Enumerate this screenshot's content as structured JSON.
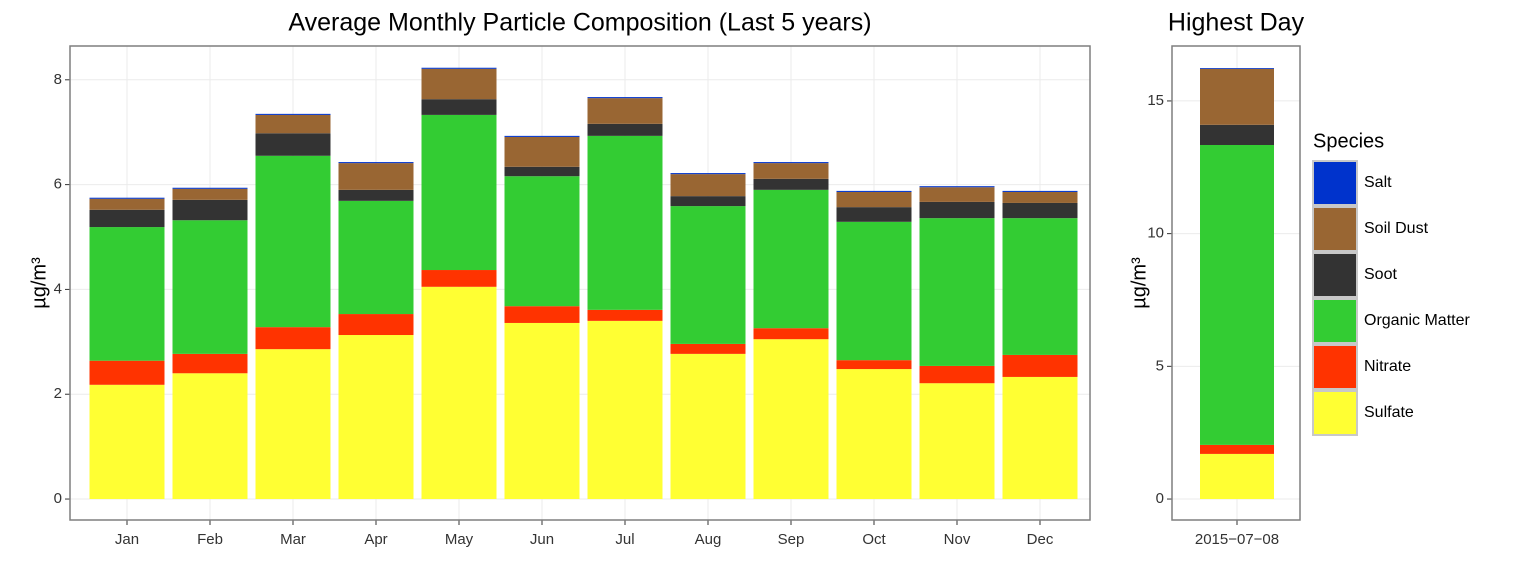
{
  "chart_data": [
    {
      "type": "stacked_bar",
      "title": "Average Monthly Particle Composition (Last 5 years)",
      "y_label": "µg/m³",
      "categories": [
        "Jan",
        "Feb",
        "Mar",
        "Apr",
        "May",
        "Jun",
        "Jul",
        "Aug",
        "Sep",
        "Oct",
        "Nov",
        "Dec"
      ],
      "series": [
        {
          "name": "Sulfate",
          "color": "#ffff33",
          "values": [
            2.18,
            2.4,
            2.86,
            3.13,
            4.05,
            3.36,
            3.4,
            2.77,
            3.05,
            2.48,
            2.21,
            2.33
          ]
        },
        {
          "name": "Nitrate",
          "color": "#ff3300",
          "values": [
            0.46,
            0.37,
            0.42,
            0.4,
            0.32,
            0.32,
            0.21,
            0.19,
            0.21,
            0.17,
            0.33,
            0.42
          ]
        },
        {
          "name": "Organic Matter",
          "color": "#33cc33",
          "values": [
            2.55,
            2.55,
            3.27,
            2.16,
            2.96,
            2.48,
            3.32,
            2.63,
            2.64,
            2.64,
            2.82,
            2.61
          ]
        },
        {
          "name": "Soot",
          "color": "#333333",
          "values": [
            0.33,
            0.39,
            0.43,
            0.21,
            0.3,
            0.18,
            0.23,
            0.19,
            0.21,
            0.28,
            0.31,
            0.29
          ]
        },
        {
          "name": "Soil Dust",
          "color": "#996633",
          "values": [
            0.21,
            0.21,
            0.35,
            0.51,
            0.58,
            0.57,
            0.49,
            0.42,
            0.3,
            0.29,
            0.28,
            0.21
          ]
        },
        {
          "name": "Salt",
          "color": "#0033cc",
          "values": [
            0.02,
            0.02,
            0.02,
            0.02,
            0.02,
            0.02,
            0.02,
            0.02,
            0.02,
            0.02,
            0.02,
            0.02
          ]
        }
      ],
      "ylim": [
        -0.4,
        8.645
      ],
      "yticks": [
        0,
        2,
        4,
        6,
        8
      ],
      "grid": true,
      "legend_title": "Species",
      "legend_position": "right"
    },
    {
      "type": "stacked_bar",
      "title": "Highest Day",
      "y_label": "µg/m³",
      "categories": [
        "2015−07−08"
      ],
      "series": [
        {
          "values": [
            1.7
          ]
        },
        {
          "values": [
            0.34
          ]
        },
        {
          "values": [
            11.3
          ]
        },
        {
          "values": [
            0.76
          ]
        },
        {
          "values": [
            2.11
          ]
        },
        {
          "values": [
            0.03
          ]
        }
      ],
      "ylim": [
        -0.79,
        17.07
      ],
      "yticks": [
        0,
        5,
        10,
        15
      ],
      "grid": true
    }
  ]
}
